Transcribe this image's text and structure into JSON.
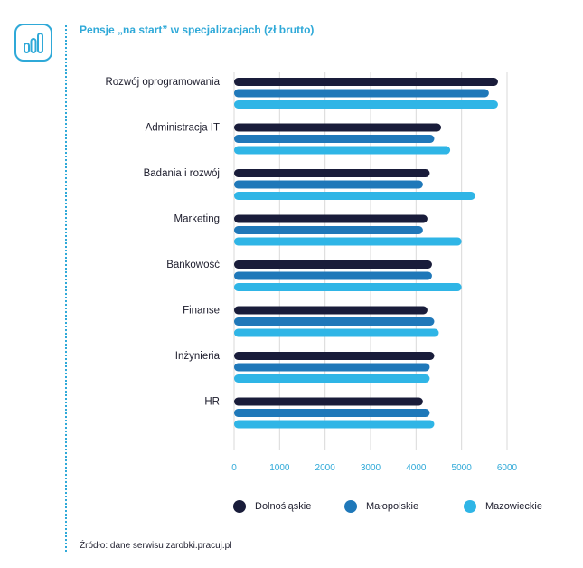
{
  "header": {
    "title": "Pensje „na start” w specjalizacjach (zł brutto)"
  },
  "footer": {
    "source": "Źródło: dane serwisu zarobki.pracuj.pl"
  },
  "icon": {
    "name": "bar-chart-icon",
    "color": "#2fa9d8"
  },
  "colors": {
    "accent": "#2fa9d8",
    "series": [
      "#191c3a",
      "#1f78b9",
      "#2fb5e6"
    ],
    "grid": "#d9d9d9"
  },
  "chart_data": {
    "type": "bar",
    "orientation": "horizontal",
    "title": "Pensje „na start” w specjalizacjach (zł brutto)",
    "categories": [
      "Rozwój oprogramowania",
      "Administracja IT",
      "Badania i rozwój",
      "Marketing",
      "Bankowość",
      "Finanse",
      "Inżynieria",
      "HR"
    ],
    "series": [
      {
        "name": "Dolnośląskie",
        "values": [
          5800,
          4550,
          4300,
          4250,
          4350,
          4250,
          4400,
          4150
        ]
      },
      {
        "name": "Małopolskie",
        "values": [
          5600,
          4400,
          4150,
          4150,
          4350,
          4400,
          4300,
          4300
        ]
      },
      {
        "name": "Mazowieckie",
        "values": [
          5800,
          4750,
          5300,
          5000,
          5000,
          4500,
          4300,
          4400
        ]
      }
    ],
    "xlim": [
      0,
      6000
    ],
    "xticks": [
      0,
      1000,
      2000,
      3000,
      4000,
      5000,
      6000
    ],
    "xtick_labels": [
      "0",
      "1000",
      "2000",
      "3000",
      "4000",
      "5000",
      "6000"
    ],
    "grid": true,
    "legend_position": "bottom"
  }
}
